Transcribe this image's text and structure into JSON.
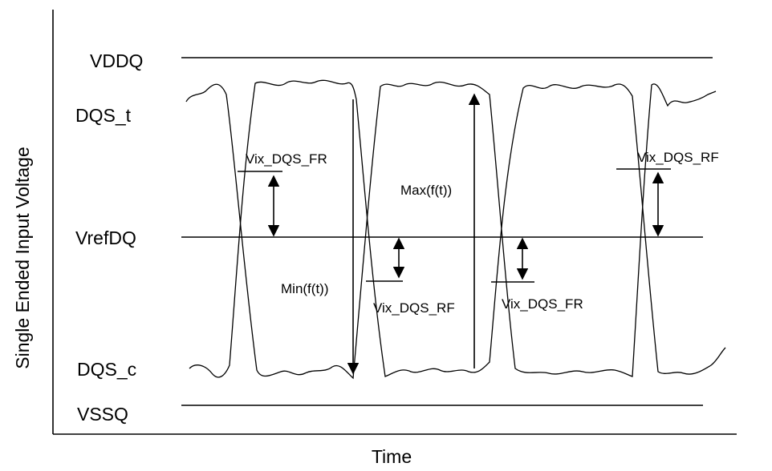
{
  "axes": {
    "x_label": "Time",
    "y_label": "Single Ended  Input Voltage"
  },
  "levels": {
    "vddq": "VDDQ",
    "dqs_t": "DQS_t",
    "vrefdq": "VrefDQ",
    "dqs_c": "DQS_c",
    "vssq": "VSSQ"
  },
  "annotations": {
    "vix_fr_1": "Vix_DQS_FR",
    "vix_rf_1": "Vix_DQS_RF",
    "vix_fr_2": "Vix_DQS_FR",
    "vix_rf_2": "Vix_DQS_RF",
    "max_ft": "Max(f(t))",
    "min_ft": "Min(f(t))"
  },
  "colors": {
    "stroke": "#000000",
    "background": "#ffffff"
  }
}
